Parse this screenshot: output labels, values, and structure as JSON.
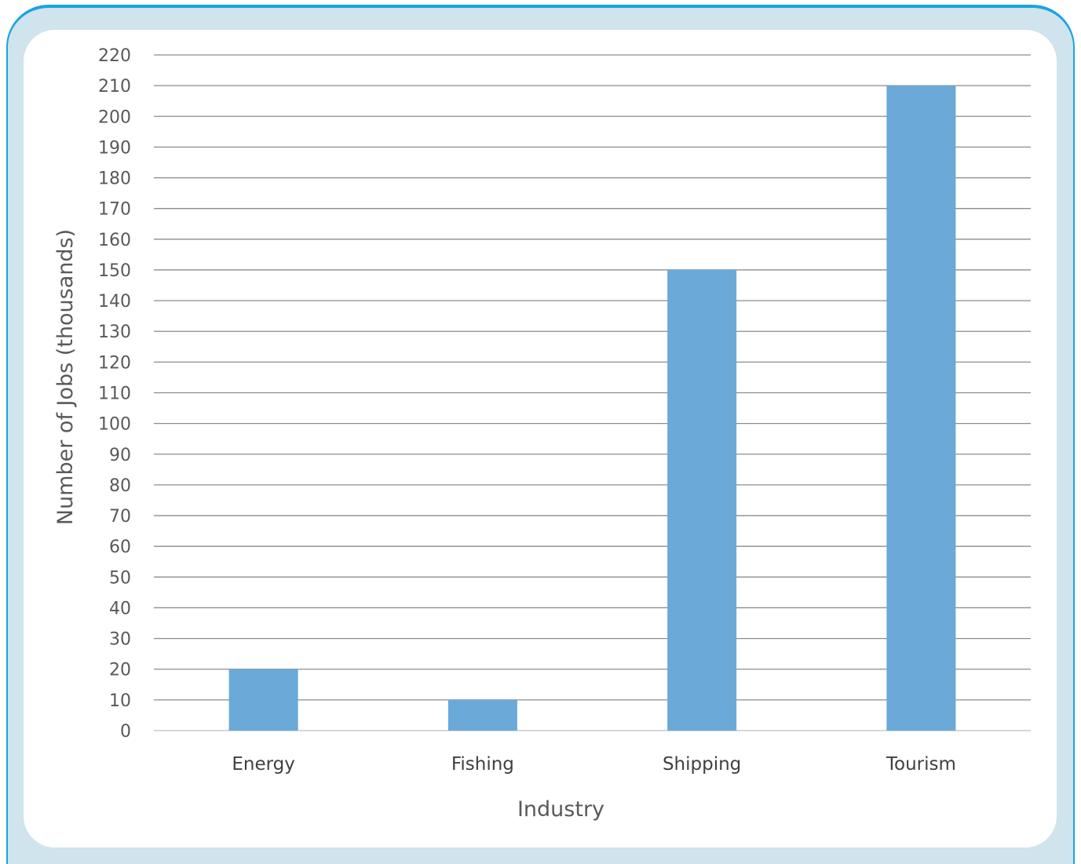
{
  "chart_data": {
    "type": "bar",
    "title": "",
    "xlabel": "Industry",
    "ylabel": "Number of Jobs (thousands)",
    "categories": [
      "Energy",
      "Fishing",
      "Shipping",
      "Tourism"
    ],
    "values": [
      20,
      10,
      150,
      210
    ],
    "ylim": [
      0,
      220
    ],
    "ytick_step": 10,
    "grid": true,
    "legend": "none",
    "bar_color": "#6aa9d8",
    "grid_color": "#8c8c8c"
  }
}
